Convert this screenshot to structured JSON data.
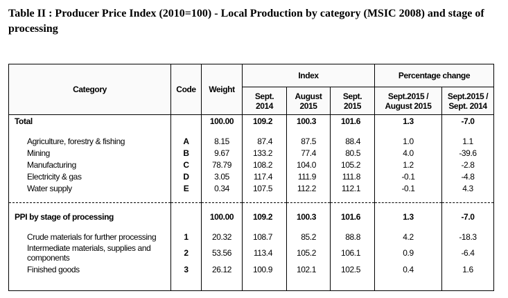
{
  "title": "Table II : Producer Price Index (2010=100) - Local Production by category (MSIC 2008) and stage of processing",
  "headers": {
    "category": "Category",
    "code": "Code",
    "weight": "Weight",
    "index": "Index",
    "pct_change": "Percentage change",
    "sept2014": "Sept. 2014",
    "aug2015": "August 2015",
    "sept2015": "Sept. 2015",
    "pct1": "Sept.2015 / August 2015",
    "pct2": "Sept.2015 / Sept. 2014"
  },
  "sections": [
    {
      "total": {
        "category": "Total",
        "code": "",
        "weight": "100.00",
        "sept2014": "109.2",
        "aug2015": "100.3",
        "sept2015": "101.6",
        "pct1": "1.3",
        "pct2": "-7.0"
      },
      "rows": [
        {
          "category": "Agriculture, forestry & fishing",
          "code": "A",
          "weight": "8.15",
          "sept2014": "87.4",
          "aug2015": "87.5",
          "sept2015": "88.4",
          "pct1": "1.0",
          "pct2": "1.1"
        },
        {
          "category": "Mining",
          "code": "B",
          "weight": "9.67",
          "sept2014": "133.2",
          "aug2015": "77.4",
          "sept2015": "80.5",
          "pct1": "4.0",
          "pct2": "-39.6"
        },
        {
          "category": "Manufacturing",
          "code": "C",
          "weight": "78.79",
          "sept2014": "108.2",
          "aug2015": "104.0",
          "sept2015": "105.2",
          "pct1": "1.2",
          "pct2": "-2.8"
        },
        {
          "category": "Electricity & gas",
          "code": "D",
          "weight": "3.05",
          "sept2014": "117.4",
          "aug2015": "111.9",
          "sept2015": "111.8",
          "pct1": "-0.1",
          "pct2": "-4.8"
        },
        {
          "category": "Water supply",
          "code": "E",
          "weight": "0.34",
          "sept2014": "107.5",
          "aug2015": "112.2",
          "sept2015": "112.1",
          "pct1": "-0.1",
          "pct2": "4.3"
        }
      ]
    },
    {
      "total": {
        "category": "PPI by stage of processing",
        "code": "",
        "weight": "100.00",
        "sept2014": "109.2",
        "aug2015": "100.3",
        "sept2015": "101.6",
        "pct1": "1.3",
        "pct2": "-7.0"
      },
      "rows": [
        {
          "category": "Crude materials for further processing",
          "code": "1",
          "weight": "20.32",
          "sept2014": "108.7",
          "aug2015": "85.2",
          "sept2015": "88.8",
          "pct1": "4.2",
          "pct2": "-18.3"
        },
        {
          "category": "Intermediate materials, supplies and components",
          "code": "2",
          "weight": "53.56",
          "sept2014": "113.4",
          "aug2015": "105.2",
          "sept2015": "106.1",
          "pct1": "0.9",
          "pct2": "-6.4"
        },
        {
          "category": "Finished goods",
          "code": "3",
          "weight": "26.12",
          "sept2014": "100.9",
          "aug2015": "102.1",
          "sept2015": "102.5",
          "pct1": "0.4",
          "pct2": "1.6"
        }
      ]
    }
  ]
}
